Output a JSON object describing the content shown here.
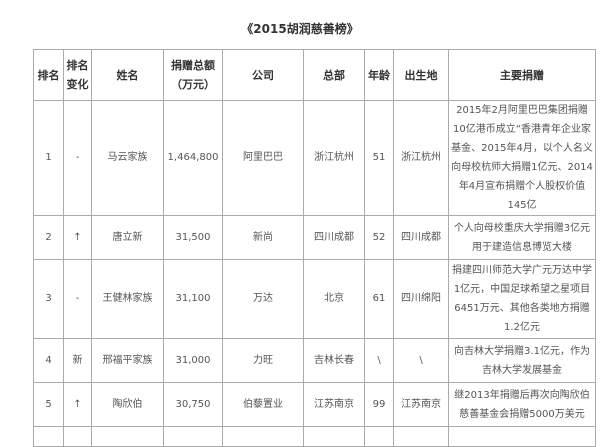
{
  "title": "《2015胡润慈善榜》",
  "headers": [
    "排名",
    "排名变化",
    "姓名",
    "捐赠总额（万元）",
    "公司",
    "总部",
    "年龄",
    "出生地",
    "主要捐赠"
  ],
  "header_lines": {
    "change": [
      "排名",
      "变化"
    ],
    "amount": [
      "捐赠总额",
      "（万元）"
    ]
  },
  "rows": [
    {
      "rank": "1",
      "change": "-",
      "name": "马云家族",
      "amount": "1,464,800",
      "company": "阿里巴巴",
      "hq": "浙江杭州",
      "age": "51",
      "birthplace": "浙江杭州",
      "donation": "2015年2月阿里巴巴集团捐赠10亿港币成立“香港青年企业家基金、2015年4月，以个人名义向母校杭师大捐赠1亿元、2014年4月宣布捐赠个人股权价值145亿"
    },
    {
      "rank": "2",
      "change": "↑",
      "name": "唐立新",
      "amount": "31,500",
      "company": "新尚",
      "hq": "四川成都",
      "age": "52",
      "birthplace": "四川成都",
      "donation": "个人向母校重庆大学捐赠3亿元用于建造信息博览大楼"
    },
    {
      "rank": "3",
      "change": "-",
      "name": "王健林家族",
      "amount": "31,100",
      "company": "万达",
      "hq": "北京",
      "age": "61",
      "birthplace": "四川绵阳",
      "donation": "捐建四川师范大学广元万达中学1亿元，中国足球希望之星项目6451万元、其他各类地方捐赠1.2亿元"
    },
    {
      "rank": "4",
      "change": "新",
      "name": "邢福平家族",
      "amount": "31,000",
      "company": "力旺",
      "hq": "吉林长春",
      "age": "\\",
      "birthplace": "\\",
      "donation": "向吉林大学捐赠3.1亿元，作为吉林大学发展基金"
    },
    {
      "rank": "5",
      "change": "↑",
      "name": "陶欣伯",
      "amount": "30,750",
      "company": "伯藜置业",
      "hq": "江苏南京",
      "age": "99",
      "birthplace": "江苏南京",
      "donation": "继2013年捐赠后再次向陶欣伯慈善基金会捐赠5000万美元"
    }
  ]
}
